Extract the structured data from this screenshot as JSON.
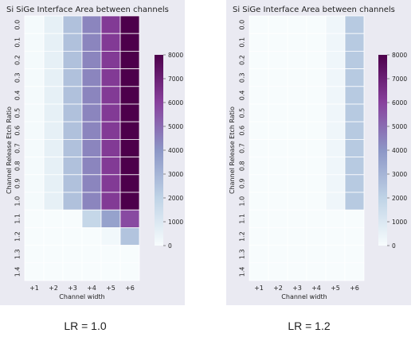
{
  "chart_data": [
    {
      "type": "heatmap",
      "title": "Si SiGe Interface Area between channels",
      "xlabel": "Channel width",
      "ylabel": "Channel Release Etch Ratio",
      "x": [
        "+1",
        "+2",
        "+3",
        "+4",
        "+5",
        "+6"
      ],
      "y": [
        "0.0",
        "0.1",
        "0.2",
        "0.3",
        "0.4",
        "0.5",
        "0.6",
        "0.7",
        "0.8",
        "0.9",
        "1.0",
        "1.1",
        "1.2",
        "1.3",
        "1.4"
      ],
      "values": [
        [
          100,
          600,
          2600,
          4400,
          6200,
          8000
        ],
        [
          100,
          600,
          2600,
          4400,
          6200,
          8000
        ],
        [
          100,
          600,
          2600,
          4400,
          6200,
          8000
        ],
        [
          100,
          600,
          2600,
          4400,
          6200,
          8000
        ],
        [
          100,
          600,
          2600,
          4400,
          6200,
          8000
        ],
        [
          100,
          600,
          2600,
          4400,
          6200,
          8000
        ],
        [
          100,
          600,
          2600,
          4400,
          6200,
          8000
        ],
        [
          100,
          600,
          2600,
          4400,
          6200,
          8000
        ],
        [
          100,
          600,
          2600,
          4400,
          6200,
          8000
        ],
        [
          100,
          600,
          2600,
          4400,
          6200,
          8000
        ],
        [
          100,
          600,
          2600,
          4400,
          6200,
          8000
        ],
        [
          0,
          0,
          0,
          1800,
          3600,
          5800
        ],
        [
          0,
          0,
          0,
          0,
          200,
          2500
        ],
        [
          0,
          0,
          0,
          0,
          0,
          0
        ],
        [
          0,
          0,
          0,
          0,
          0,
          0
        ]
      ],
      "colorbar": {
        "min": 0,
        "max": 8000,
        "ticks": [
          0,
          1000,
          2000,
          3000,
          4000,
          5000,
          6000,
          7000,
          8000
        ]
      },
      "colormap": [
        "#f7fcfd",
        "#bfd3e6",
        "#8c96c6",
        "#88419d",
        "#4d004b"
      ],
      "caption": "LR = 1.0"
    },
    {
      "type": "heatmap",
      "title": "Si SiGe Interface Area between channels",
      "xlabel": "Channel width",
      "ylabel": "Channel Release Etch Ratio",
      "x": [
        "+1",
        "+2",
        "+3",
        "+4",
        "+5",
        "+6"
      ],
      "y": [
        "0.0",
        "0.1",
        "0.2",
        "0.3",
        "0.4",
        "0.5",
        "0.6",
        "0.7",
        "0.8",
        "0.9",
        "1.0",
        "1.1",
        "1.2",
        "1.3",
        "1.4"
      ],
      "values": [
        [
          0,
          0,
          0,
          0,
          300,
          2300
        ],
        [
          0,
          0,
          0,
          0,
          300,
          2300
        ],
        [
          0,
          0,
          0,
          0,
          300,
          2300
        ],
        [
          0,
          0,
          0,
          0,
          300,
          2300
        ],
        [
          0,
          0,
          0,
          0,
          300,
          2300
        ],
        [
          0,
          0,
          0,
          0,
          300,
          2300
        ],
        [
          0,
          0,
          0,
          0,
          300,
          2300
        ],
        [
          0,
          0,
          0,
          0,
          300,
          2300
        ],
        [
          0,
          0,
          0,
          0,
          300,
          2300
        ],
        [
          0,
          0,
          0,
          0,
          300,
          2300
        ],
        [
          0,
          0,
          0,
          0,
          300,
          2300
        ],
        [
          0,
          0,
          0,
          0,
          0,
          0
        ],
        [
          0,
          0,
          0,
          0,
          0,
          0
        ],
        [
          0,
          0,
          0,
          0,
          0,
          0
        ],
        [
          0,
          0,
          0,
          0,
          0,
          0
        ]
      ],
      "colorbar": {
        "min": 0,
        "max": 8000,
        "ticks": [
          0,
          1000,
          2000,
          3000,
          4000,
          5000,
          6000,
          7000,
          8000
        ]
      },
      "colormap": [
        "#f7fcfd",
        "#bfd3e6",
        "#8c96c6",
        "#88419d",
        "#4d004b"
      ],
      "caption": "LR = 1.2"
    }
  ]
}
